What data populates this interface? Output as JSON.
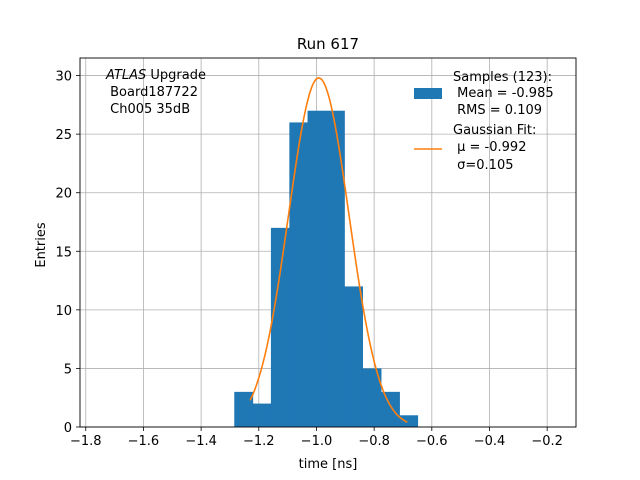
{
  "chart_data": {
    "type": "bar",
    "title": "Run 617",
    "xlabel": "time [ns]",
    "ylabel": "Entries",
    "xlim": [
      -1.82,
      -0.1
    ],
    "ylim": [
      0,
      31.5
    ],
    "xticks": [
      -1.8,
      -1.6,
      -1.4,
      -1.2,
      -1.0,
      -0.8,
      -0.6,
      -0.4,
      -0.2
    ],
    "xtick_labels": [
      "−1.8",
      "−1.6",
      "−1.4",
      "−1.2",
      "−1.0",
      "−0.8",
      "−0.6",
      "−0.4",
      "−0.2"
    ],
    "yticks": [
      0,
      5,
      10,
      15,
      20,
      25,
      30
    ],
    "ytick_labels": [
      "0",
      "5",
      "10",
      "15",
      "20",
      "25",
      "30"
    ],
    "grid": true,
    "legend_position": "top-right",
    "bar_color": "#1f77b4",
    "fit_color": "#ff7f0e",
    "histogram": {
      "bin_edges": [
        -1.285,
        -1.221,
        -1.158,
        -1.094,
        -1.031,
        -0.967,
        -0.903,
        -0.84,
        -0.776,
        -0.712,
        -0.649
      ],
      "counts": [
        3,
        2,
        17,
        26,
        27,
        27,
        12,
        5,
        3,
        1
      ]
    },
    "fit": {
      "mu": -0.992,
      "sigma": 0.105,
      "amplitude": 29.8,
      "x_range": [
        -1.23,
        -0.685
      ]
    },
    "annotation_lines": [
      "ATLAS",
      " Upgrade",
      " Board187722",
      " Ch005 35dB"
    ],
    "legend": {
      "samples_lines": [
        "Samples (123):",
        " Mean = -0.985",
        " RMS = 0.109"
      ],
      "fit_lines": [
        "Gaussian Fit:",
        " μ = -0.992",
        " σ=0.105"
      ]
    }
  }
}
